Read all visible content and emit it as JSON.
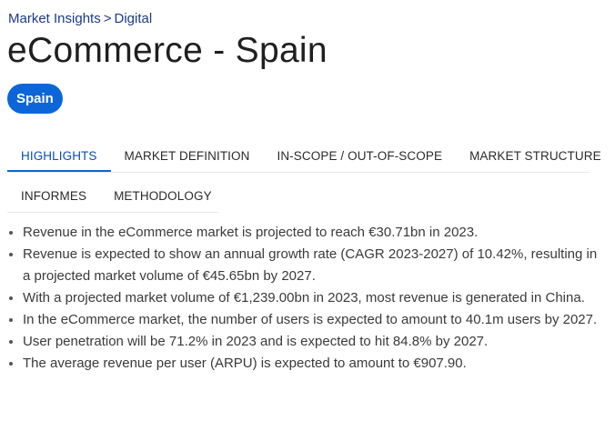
{
  "breadcrumb": {
    "items": [
      "Market Insights",
      "Digital"
    ],
    "separator": ">"
  },
  "page": {
    "title": "eCommerce - Spain"
  },
  "region_chip": {
    "label": "Spain"
  },
  "tabs": [
    {
      "label": "HIGHLIGHTS",
      "active": true
    },
    {
      "label": "MARKET DEFINITION",
      "active": false
    },
    {
      "label": "IN-SCOPE / OUT-OF-SCOPE",
      "active": false
    },
    {
      "label": "MARKET STRUCTURE",
      "active": false
    },
    {
      "label": "INFORMES",
      "active": false
    },
    {
      "label": "METHODOLOGY",
      "active": false
    }
  ],
  "highlights": [
    "Revenue in the eCommerce market is projected to reach €30.71bn in 2023.",
    "Revenue is expected to show an annual growth rate (CAGR 2023-2027) of 10.42%, resulting in a projected market volume of €45.65bn by 2027.",
    "With a projected market volume of €1,239.00bn in 2023, most revenue is generated in China.",
    "In the eCommerce market, the number of users is expected to amount to 40.1m users by 2027.",
    "User penetration will be 71.2% in 2023 and is expected to hit 84.8% by 2027.",
    "The average revenue per user (ARPU) is expected to amount to €907.90."
  ],
  "colors": {
    "accent": "#0c66d9",
    "breadcrumb": "#1a3a8a",
    "active_tab": "#0c4fb3"
  }
}
